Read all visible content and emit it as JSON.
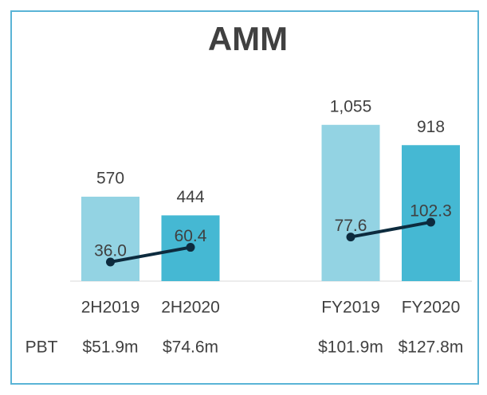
{
  "chart_data": {
    "type": "bar",
    "title": "AMM",
    "categories": [
      "2H2019",
      "2H2020",
      null,
      "FY2019",
      "FY2020"
    ],
    "series": [
      {
        "type": "bar",
        "colors": [
          "#93d3e3",
          "#45b8d3",
          null,
          "#93d3e3",
          "#45b8d3"
        ],
        "values": [
          570,
          444,
          null,
          1055,
          918
        ],
        "value_labels": [
          "570",
          "444",
          null,
          "1,055",
          "918"
        ]
      },
      {
        "type": "line",
        "color": "#0d2b3e",
        "values": [
          36.0,
          60.4,
          null,
          77.6,
          102.3
        ],
        "value_labels": [
          "36.0",
          "60.4",
          null,
          "77.6",
          "102.3"
        ]
      }
    ],
    "row_label": "PBT",
    "row_values": [
      "$51.9m",
      "$74.6m",
      null,
      "$101.9m",
      "$127.8m"
    ]
  }
}
